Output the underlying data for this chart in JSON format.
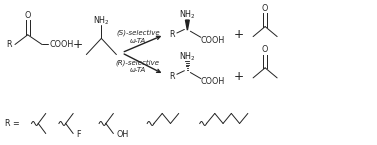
{
  "figsize": [
    3.77,
    1.45
  ],
  "dpi": 100,
  "bg_color": "white",
  "text_color": "#222222",
  "lw": 0.7,
  "fs": 5.8,
  "fs_small": 5.0,
  "xlim": [
    0,
    10
  ],
  "ylim": [
    0,
    4
  ],
  "s_label1": "(S)-selective",
  "s_label2": "ω-TA",
  "r_label1": "(R)-selective",
  "r_label2": "ω-TA"
}
